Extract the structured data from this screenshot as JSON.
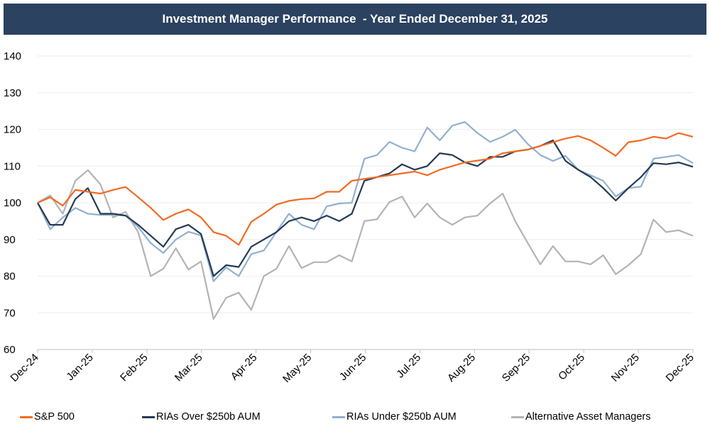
{
  "chart_data": {
    "type": "line",
    "title": "Investment Manager Performance  - Year Ended December 31, 2025",
    "xlabel": "",
    "ylabel": "",
    "ylim": [
      60,
      140
    ],
    "yticks": [
      60,
      70,
      80,
      90,
      100,
      110,
      120,
      130,
      140
    ],
    "xtick_labels": [
      "Dec-24",
      "Jan-25",
      "Feb-25",
      "Mar-25",
      "Apr-25",
      "May-25",
      "Jun-25",
      "Jul-25",
      "Aug-25",
      "Sep-25",
      "Oct-25",
      "Nov-25",
      "Dec-25"
    ],
    "grid": "horizontal",
    "legend_position": "bottom",
    "x_start": "2024-12-31",
    "x_end": "2025-12-31",
    "x": [
      "2024-12-31",
      "2025-01-07",
      "2025-01-14",
      "2025-01-21",
      "2025-01-28",
      "2025-02-04",
      "2025-02-11",
      "2025-02-18",
      "2025-02-25",
      "2025-03-04",
      "2025-03-11",
      "2025-03-18",
      "2025-03-25",
      "2025-04-01",
      "2025-04-08",
      "2025-04-15",
      "2025-04-22",
      "2025-04-29",
      "2025-05-06",
      "2025-05-13",
      "2025-05-20",
      "2025-05-27",
      "2025-06-03",
      "2025-06-10",
      "2025-06-17",
      "2025-06-24",
      "2025-07-01",
      "2025-07-08",
      "2025-07-15",
      "2025-07-22",
      "2025-07-29",
      "2025-08-05",
      "2025-08-12",
      "2025-08-19",
      "2025-08-26",
      "2025-09-02",
      "2025-09-09",
      "2025-09-16",
      "2025-09-23",
      "2025-09-30",
      "2025-10-07",
      "2025-10-14",
      "2025-10-21",
      "2025-10-28",
      "2025-11-04",
      "2025-11-11",
      "2025-11-18",
      "2025-11-25",
      "2025-12-02",
      "2025-12-09",
      "2025-12-16",
      "2025-12-23",
      "2025-12-31"
    ],
    "series": [
      {
        "name": "S&P 500",
        "color": "#f26a21",
        "values": [
          100,
          101.5,
          99.2,
          103.5,
          103,
          102.5,
          103.5,
          104.3,
          101.5,
          98.6,
          95.3,
          97,
          98.2,
          96,
          92,
          91,
          88.5,
          94.8,
          97,
          99.5,
          100.5,
          101,
          101.2,
          103,
          103,
          106,
          106.5,
          107,
          107.5,
          108,
          108.5,
          107.5,
          109,
          110,
          111,
          111.5,
          112,
          113.5,
          114,
          114.5,
          115.5,
          116.5,
          117.5,
          118.2,
          117,
          115,
          112.8,
          116.5,
          117,
          118,
          117.5,
          119,
          118
        ]
      },
      {
        "name": "RIAs Over $250b AUM",
        "color": "#243a55",
        "values": [
          100,
          94,
          94,
          101,
          104,
          97,
          97,
          96.5,
          94,
          91,
          88,
          92.8,
          94,
          91.5,
          80,
          83,
          82.5,
          88,
          90,
          92,
          95,
          96,
          95,
          96.5,
          95,
          97,
          106,
          107,
          108,
          110.5,
          109,
          110,
          113.5,
          113,
          111,
          110,
          112.5,
          112.5,
          114,
          114.5,
          115.5,
          117,
          111.4,
          109,
          107,
          104,
          100.6,
          104,
          107,
          110.8,
          110.5,
          111,
          109.8
        ]
      },
      {
        "name": "RIAs Under $250b AUM",
        "color": "#92b0cf",
        "values": [
          100,
          92.8,
          96,
          98.6,
          97,
          96.7,
          96.7,
          96.5,
          93.4,
          89,
          86.3,
          90,
          92.1,
          91.1,
          78.6,
          82.4,
          80,
          86,
          87,
          92,
          97,
          94,
          92.8,
          99,
          99.8,
          100,
          112,
          113,
          116.6,
          115,
          114,
          120.5,
          117,
          121,
          122,
          119,
          116.6,
          118,
          119.9,
          116,
          113,
          111.4,
          112.8,
          109,
          107.5,
          106,
          101.7,
          104,
          104.4,
          112,
          112.5,
          113,
          110.8
        ]
      },
      {
        "name": "Alternative Asset Managers",
        "color": "#b3b3b3",
        "values": [
          100,
          102,
          97,
          106,
          108.9,
          105,
          96,
          97.5,
          92,
          80,
          82,
          87.6,
          81.8,
          84,
          68.3,
          74.1,
          75.5,
          70.8,
          80,
          82,
          88.2,
          82.2,
          83.8,
          83.8,
          85.7,
          84,
          95,
          95.5,
          100.2,
          101.7,
          96,
          99.8,
          96,
          94,
          96,
          96.5,
          99.8,
          102.5,
          95,
          89,
          83.2,
          88.2,
          84,
          84,
          83.2,
          85.7,
          80.5,
          83,
          86,
          95.4,
          92,
          92.5,
          91
        ]
      }
    ]
  },
  "colors": {
    "title_bar": "#2b4260",
    "grid": "#eeeeee",
    "axis": "#bfbfbf"
  }
}
